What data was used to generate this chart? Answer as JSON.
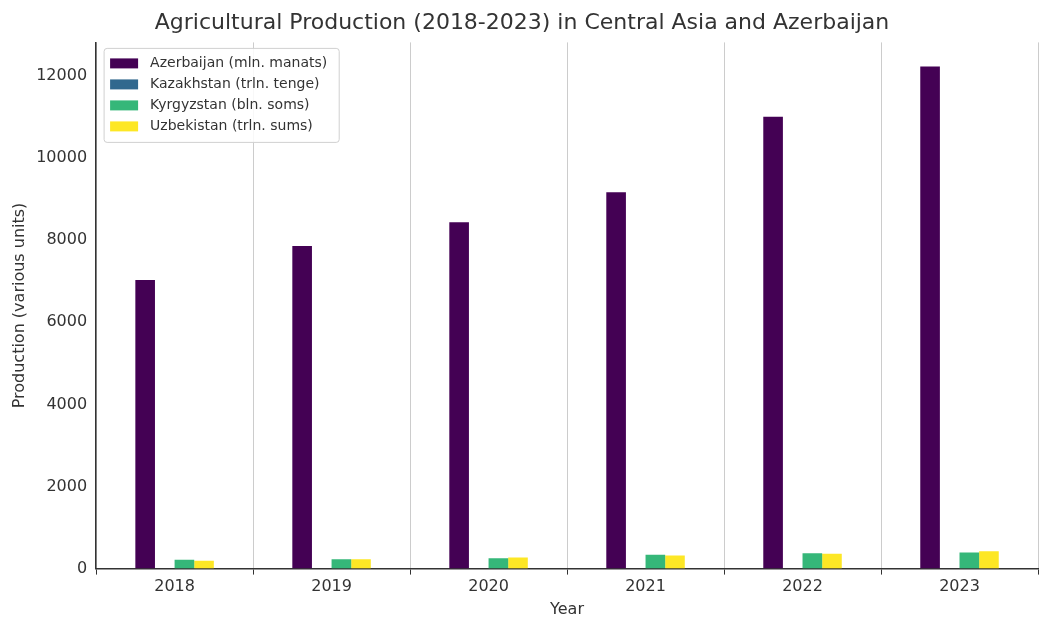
{
  "chart_data": {
    "type": "bar",
    "title": "Agricultural Production (2018-2023) in Central Asia and Azerbaijan",
    "xlabel": "Year",
    "ylabel": "Production (various units)",
    "categories": [
      "2018",
      "2019",
      "2020",
      "2021",
      "2022",
      "2023"
    ],
    "series": [
      {
        "name": "Azerbaijan (mln. manats)",
        "color": "#440154",
        "values": [
          7030,
          7860,
          8440,
          9170,
          11010,
          12230
        ]
      },
      {
        "name": "Kazakhstan (trln. tenge)",
        "color": "#31688e",
        "values": [
          null,
          null,
          null,
          null,
          null,
          null
        ]
      },
      {
        "name": "Kyrgyzstan (bln. soms)",
        "color": "#35b779",
        "values": [
          215,
          230,
          255,
          335,
          375,
          390
        ]
      },
      {
        "name": "Uzbekistan (trln. sums)",
        "color": "#fde725",
        "values": [
          190,
          230,
          270,
          320,
          360,
          420
        ]
      }
    ],
    "ylim": [
      0,
      12820
    ],
    "yticks": [
      0,
      2000,
      4000,
      6000,
      8000,
      10000,
      12000
    ],
    "grid": "x",
    "legend": "top left"
  }
}
